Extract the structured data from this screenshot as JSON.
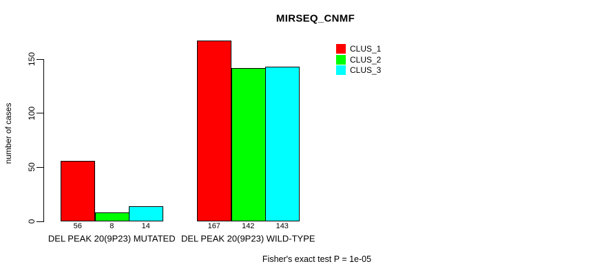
{
  "chart_data": {
    "type": "bar",
    "title": "MIRSEQ_CNMF",
    "ylabel": "number of cases",
    "xlabel": "",
    "categories": [
      "DEL PEAK 20(9P23) MUTATED",
      "DEL PEAK 20(9P23) WILD-TYPE"
    ],
    "series": [
      {
        "name": "CLUS_1",
        "color": "#ff0000",
        "values": [
          56,
          167
        ]
      },
      {
        "name": "CLUS_2",
        "color": "#00ff00",
        "values": [
          8,
          142
        ]
      },
      {
        "name": "CLUS_3",
        "color": "#00ffff",
        "values": [
          14,
          143
        ]
      }
    ],
    "bar_value_labels": [
      [
        "56",
        "8",
        "14"
      ],
      [
        "167",
        "142",
        "143"
      ]
    ],
    "yticks": [
      0,
      50,
      100,
      150
    ],
    "ylim": [
      0,
      175
    ],
    "grid": false,
    "legend_position": "top-right",
    "annotation": "Fisher's exact test P = 1e-05"
  }
}
